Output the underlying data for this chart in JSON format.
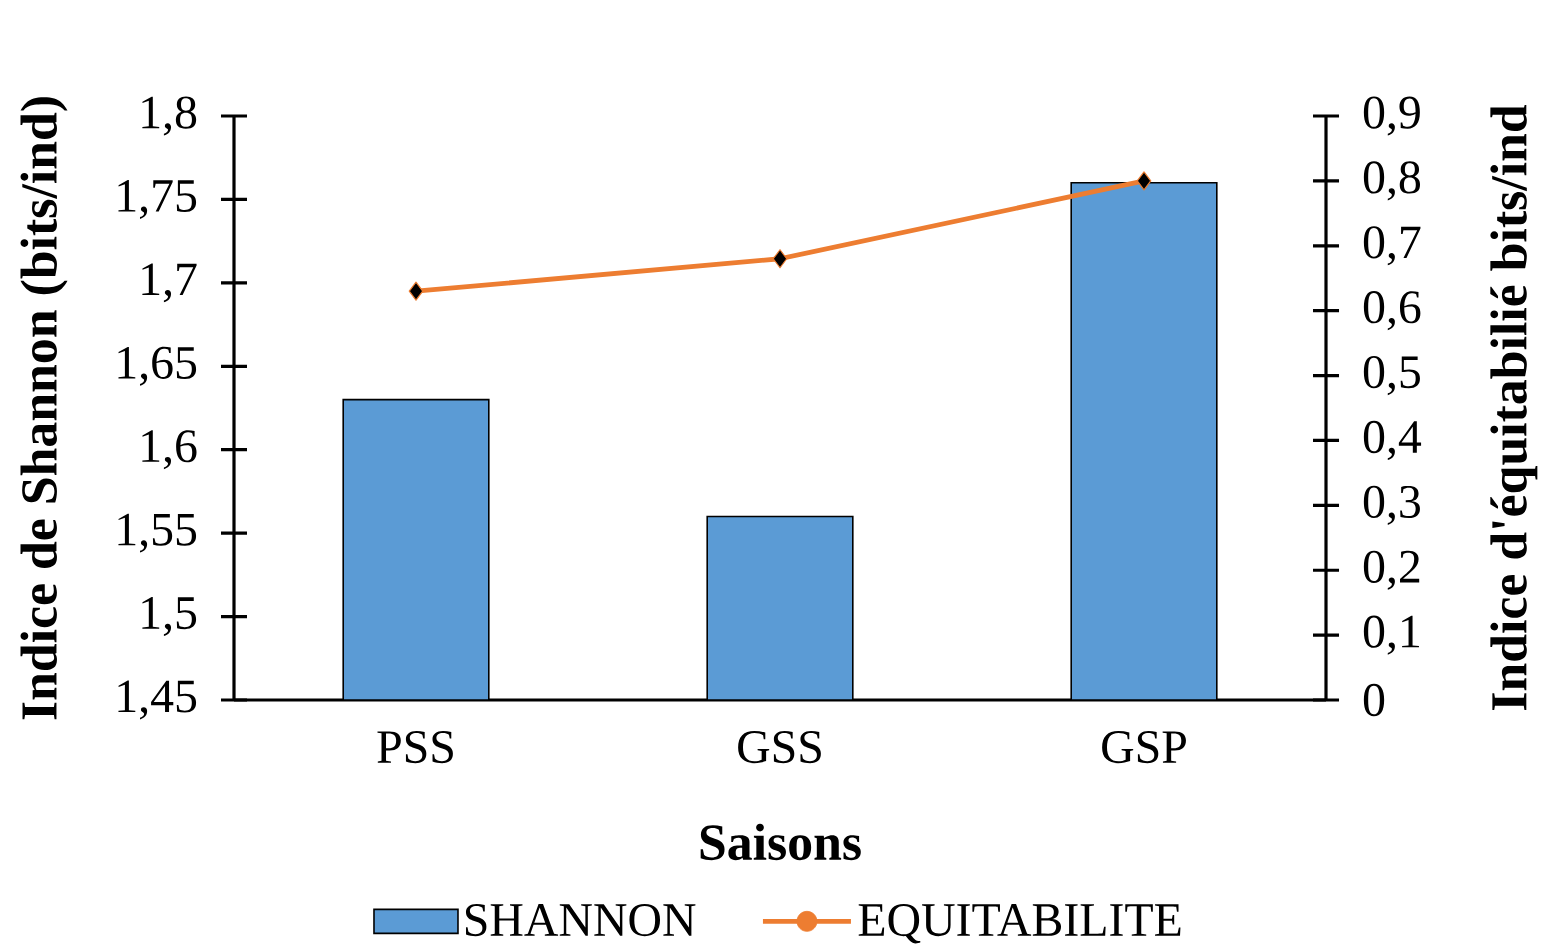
{
  "chart_data": {
    "type": "bar",
    "xlabel": "Saisons",
    "ylabel": "Indice de Shannon (bits/ind)",
    "y2label": "Indice d'équitabilié bits/ind",
    "categories": [
      "PSS",
      "GSS",
      "GSP"
    ],
    "series": [
      {
        "name": "SHANNON",
        "color": "#5b9bd5",
        "values": [
          1.63,
          1.56,
          1.76
        ]
      },
      {
        "name": "EQUITABILITE",
        "type": "line",
        "axis": "y2",
        "color": "#ed7d31",
        "values": [
          0.63,
          0.68,
          0.8
        ]
      }
    ],
    "marker": "diamond",
    "legend": "bottom",
    "ylim": [
      1.45,
      1.8
    ],
    "yticks": [
      {
        "value": 1.45,
        "label": "1,45"
      },
      {
        "value": 1.5,
        "label": "1,5"
      },
      {
        "value": 1.55,
        "label": "1,55"
      },
      {
        "value": 1.6,
        "label": "1,6"
      },
      {
        "value": 1.65,
        "label": "1,65"
      },
      {
        "value": 1.7,
        "label": "1,7"
      },
      {
        "value": 1.75,
        "label": "1,75"
      },
      {
        "value": 1.8,
        "label": "1,8"
      }
    ],
    "y2lim": [
      0,
      0.9
    ],
    "y2ticks": [
      0,
      {
        "value": 0.1,
        "label": "0,1"
      },
      {
        "value": 0.2,
        "label": "0,2"
      },
      {
        "value": 0.3,
        "label": "0,3"
      },
      {
        "value": 0.4,
        "label": "0,4"
      },
      {
        "value": 0.5,
        "label": "0,5"
      },
      {
        "value": 0.6,
        "label": "0,6"
      },
      {
        "value": 0.7,
        "label": "0,7"
      },
      {
        "value": 0.8,
        "label": "0,8"
      },
      {
        "value": 0.9,
        "label": "0,9"
      }
    ]
  }
}
